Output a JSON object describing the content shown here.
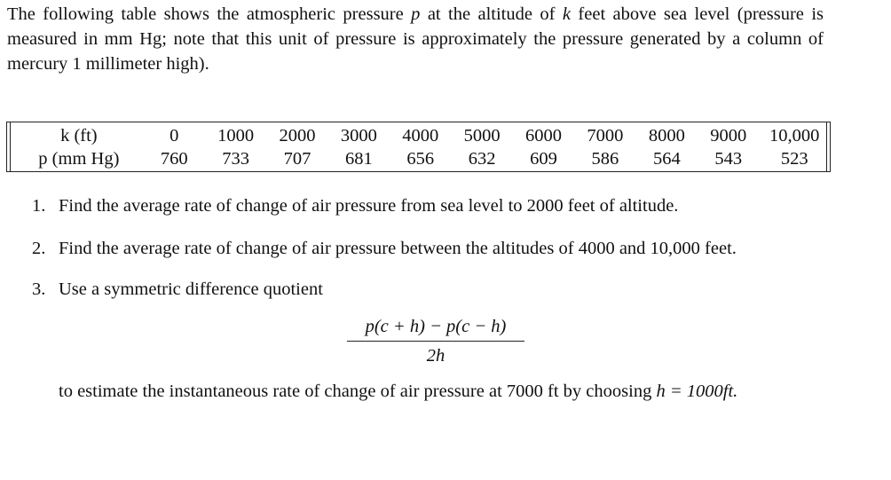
{
  "intro": {
    "part1": "The following table shows the atmospheric pressure ",
    "var_p": "p",
    "part2": " at the altitude of ",
    "var_k": "k",
    "part3": " feet above sea level (pressure is measured in mm Hg; note that this unit of pressure is approximately the pressure generated by a column of mercury 1 millimeter high)."
  },
  "table": {
    "row_headers": [
      "k (ft)",
      "p (mm Hg)"
    ],
    "altitudes": [
      "0",
      "1000",
      "2000",
      "3000",
      "4000",
      "5000",
      "6000",
      "7000",
      "8000",
      "9000",
      "10,000"
    ],
    "pressures": [
      "760",
      "733",
      "707",
      "681",
      "656",
      "632",
      "609",
      "586",
      "564",
      "543",
      "523"
    ]
  },
  "questions": [
    {
      "num": "1.",
      "text": "Find the average rate of change of air pressure from sea level to 2000 feet of altitude."
    },
    {
      "num": "2.",
      "text": "Find the average rate of change of air pressure between the altitudes of 4000 and 10,000 feet."
    },
    {
      "num": "3.",
      "text": "Use a symmetric difference quotient",
      "formula_numerator": "p(c + h) − p(c − h)",
      "formula_denominator": "2h",
      "text2": "to estimate the instantaneous rate of change of air pressure at 7000 ft by choosing ",
      "text3": "h = 1000ft."
    }
  ]
}
